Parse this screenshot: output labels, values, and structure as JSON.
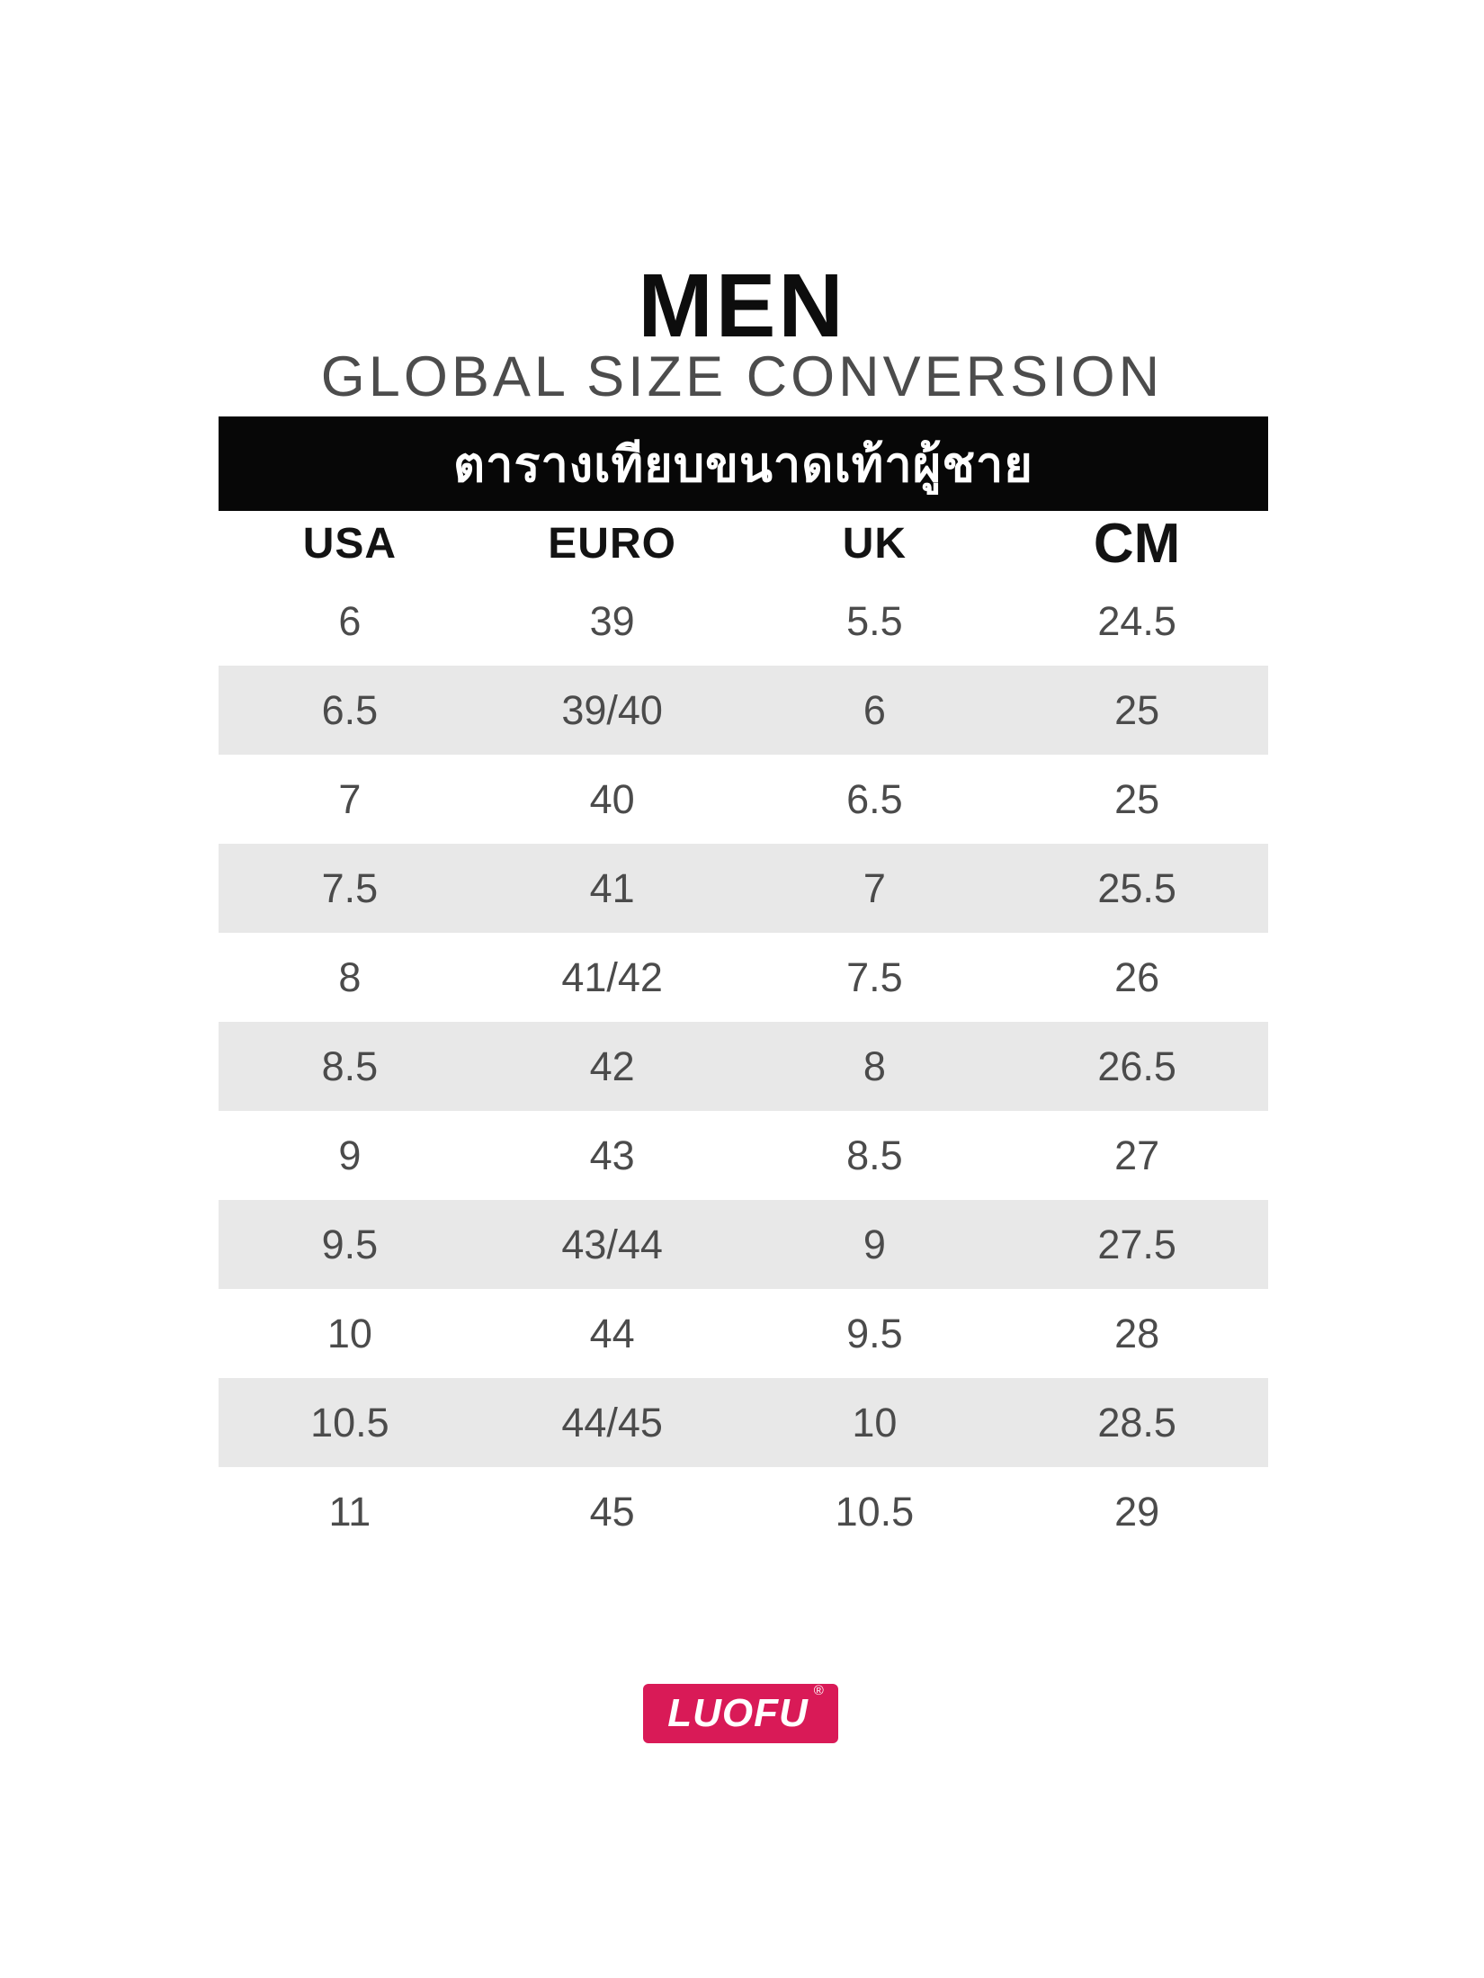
{
  "page": {
    "title": "MEN",
    "subtitle": "GLOBAL SIZE CONVERSION",
    "banner_title_thai": "ตารางเทียบขนาดเท้าผู้ชาย"
  },
  "brand": {
    "name": "LUOFU",
    "registered_mark": "®",
    "color": "#d91a57"
  },
  "chart_data": {
    "type": "table",
    "title": "MEN",
    "subtitle": "GLOBAL SIZE CONVERSION",
    "banner_title_thai": "ตารางเทียบขนาดเท้าผู้ชาย",
    "columns": [
      "USA",
      "EURO",
      "UK",
      "CM"
    ],
    "rows": [
      [
        "6",
        "39",
        "5.5",
        "24.5"
      ],
      [
        "6.5",
        "39/40",
        "6",
        "25"
      ],
      [
        "7",
        "40",
        "6.5",
        "25"
      ],
      [
        "7.5",
        "41",
        "7",
        "25.5"
      ],
      [
        "8",
        "41/42",
        "7.5",
        "26"
      ],
      [
        "8.5",
        "42",
        "8",
        "26.5"
      ],
      [
        "9",
        "43",
        "8.5",
        "27"
      ],
      [
        "9.5",
        "43/44",
        "9",
        "27.5"
      ],
      [
        "10",
        "44",
        "9.5",
        "28"
      ],
      [
        "10.5",
        "44/45",
        "10",
        "28.5"
      ],
      [
        "11",
        "45",
        "10.5",
        "29"
      ]
    ],
    "layout": {
      "alignment": "center",
      "striped_rows": "alternating, stripes on 2nd/4th/6th/8th/10th data rows",
      "stripe_color": "#e8e8e8",
      "header_band_color": "#070707",
      "grid": "off"
    }
  }
}
